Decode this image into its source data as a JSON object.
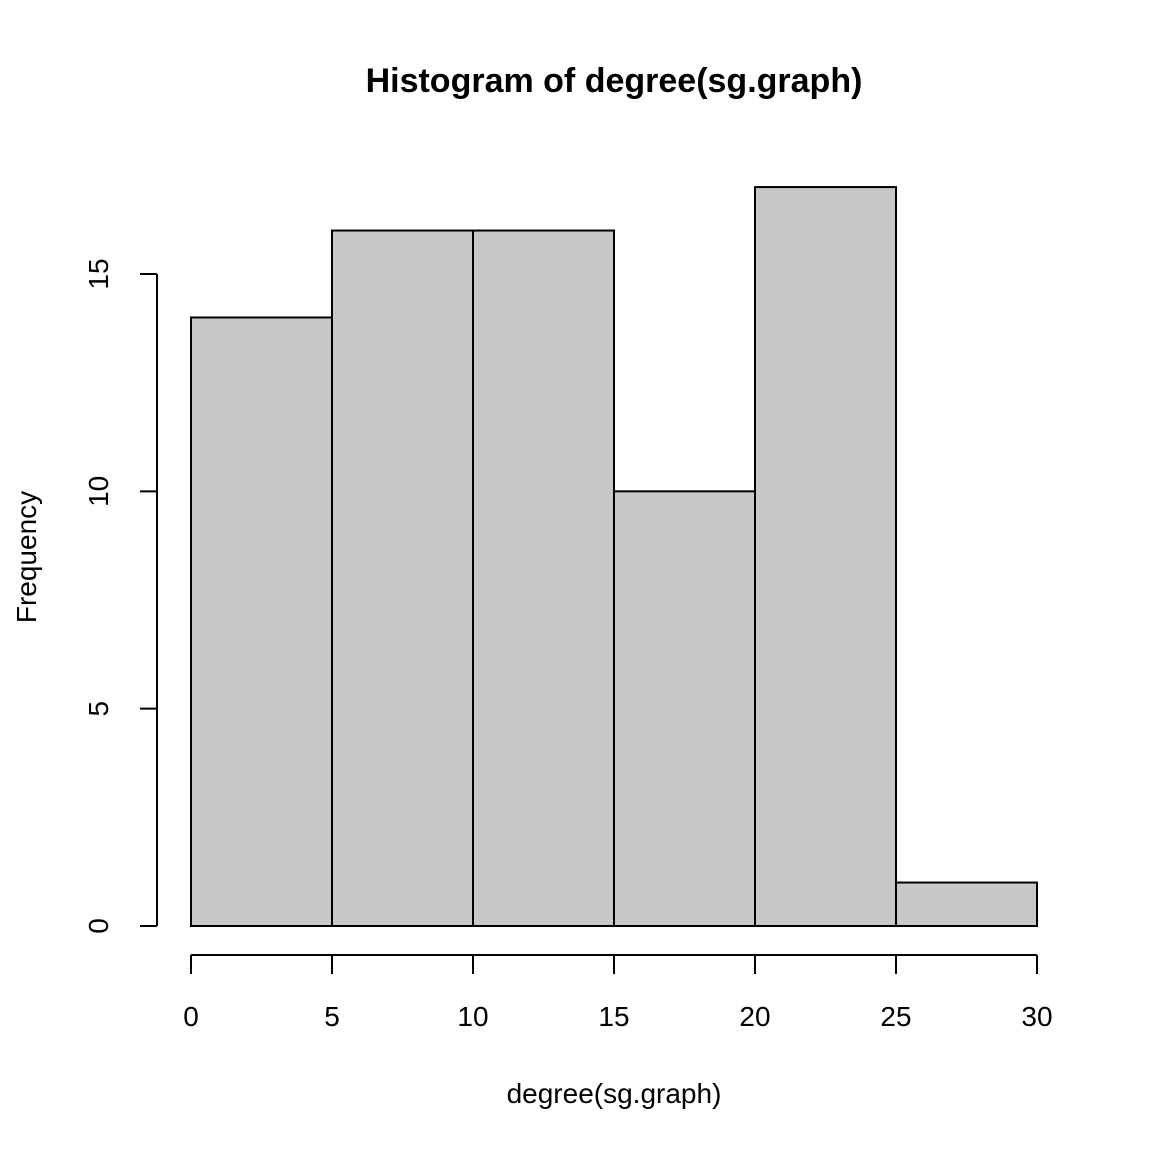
{
  "chart_data": {
    "type": "bar",
    "title": "Histogram of degree(sg.graph)",
    "xlabel": "degree(sg.graph)",
    "ylabel": "Frequency",
    "bins": [
      {
        "from": 0,
        "to": 5,
        "count": 14
      },
      {
        "from": 5,
        "to": 10,
        "count": 16
      },
      {
        "from": 10,
        "to": 15,
        "count": 16
      },
      {
        "from": 15,
        "to": 20,
        "count": 10
      },
      {
        "from": 20,
        "to": 25,
        "count": 17
      },
      {
        "from": 25,
        "to": 30,
        "count": 1
      }
    ],
    "xlim": [
      0,
      30
    ],
    "ylim": [
      0,
      17
    ],
    "xticks": [
      "0",
      "5",
      "10",
      "15",
      "20",
      "25",
      "30"
    ],
    "yticks": [
      "0",
      "5",
      "10",
      "15"
    ],
    "bar_color": "#c8c8c8",
    "grid": false,
    "legend": "none"
  }
}
